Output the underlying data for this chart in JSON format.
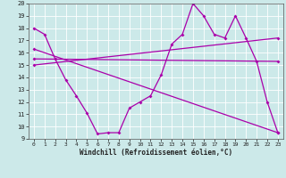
{
  "xlabel": "Windchill (Refroidissement éolien,°C)",
  "xlim": [
    -0.5,
    23.5
  ],
  "ylim": [
    9,
    20
  ],
  "yticks": [
    9,
    10,
    11,
    12,
    13,
    14,
    15,
    16,
    17,
    18,
    19,
    20
  ],
  "xticks": [
    0,
    1,
    2,
    3,
    4,
    5,
    6,
    7,
    8,
    9,
    10,
    11,
    12,
    13,
    14,
    15,
    16,
    17,
    18,
    19,
    20,
    21,
    22,
    23
  ],
  "bg_color": "#cce9e9",
  "grid_color": "#ffffff",
  "line_color": "#aa00aa",
  "line1_x": [
    0,
    1,
    2,
    3,
    4,
    5,
    6,
    7,
    8,
    9,
    10,
    11,
    12,
    13,
    14,
    15,
    16,
    17,
    18,
    19,
    20,
    21,
    22,
    23
  ],
  "line1_y": [
    18,
    17.5,
    15.5,
    13.8,
    12.5,
    11.1,
    9.4,
    9.5,
    9.5,
    11.5,
    12.0,
    12.5,
    14.2,
    16.7,
    17.5,
    20.0,
    19.0,
    17.5,
    17.2,
    19.0,
    17.2,
    15.3,
    12.0,
    9.5
  ],
  "line2_x": [
    0,
    23
  ],
  "line2_y": [
    15.5,
    15.3
  ],
  "line3_x": [
    0,
    23
  ],
  "line3_y": [
    15.0,
    17.2
  ],
  "line4_x": [
    0,
    23
  ],
  "line4_y": [
    16.3,
    9.5
  ]
}
